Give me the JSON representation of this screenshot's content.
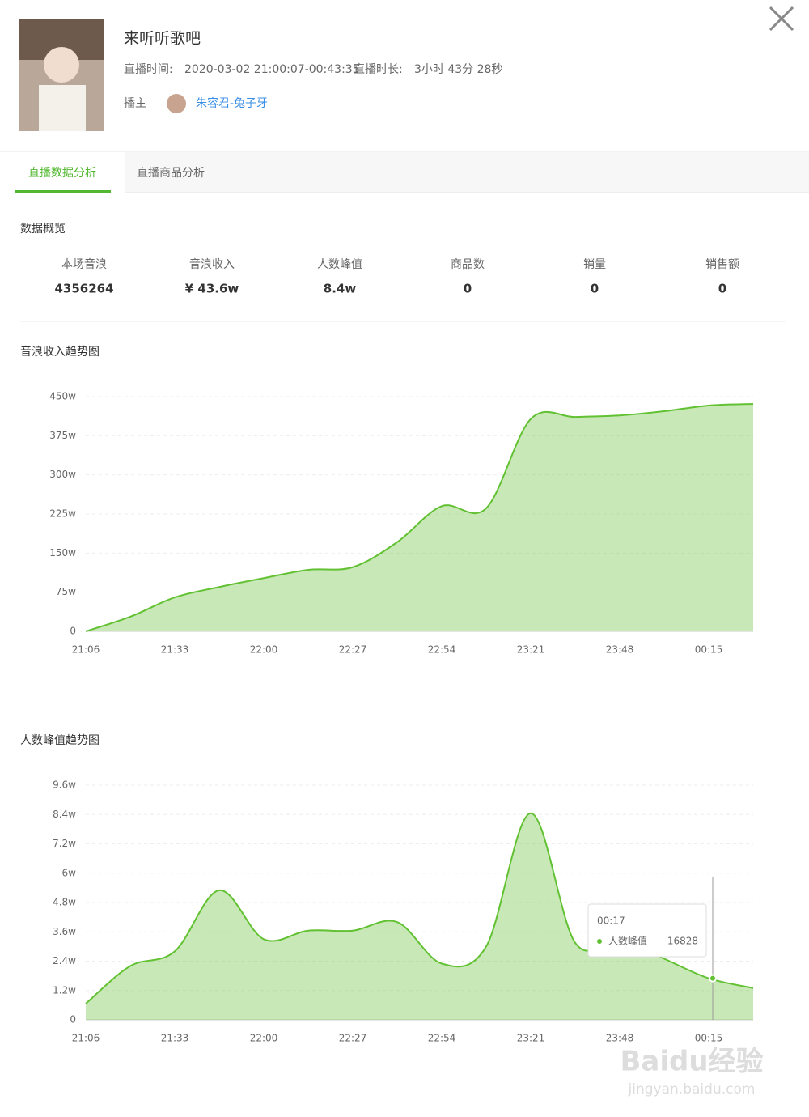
{
  "header": {
    "title": "来听听歌吧",
    "time_label": "直播时间:",
    "time_value": "2020-03-02 21:00:07-00:43:35",
    "duration_label": "直播时长:",
    "duration_value": "3小时 43分 28秒",
    "host_label": "播主",
    "host_name": "朱容君-兔子牙"
  },
  "tabs": [
    "直播数据分析",
    "直播商品分析"
  ],
  "overview": {
    "title": "数据概览",
    "stats": [
      {
        "label": "本场音浪",
        "value": 4356264
      },
      {
        "label": "音浪收入",
        "value": "¥ 43.6w"
      },
      {
        "label": "人数峰值",
        "value": "8.4w"
      },
      {
        "label": "商品数",
        "value": 0
      },
      {
        "label": "销量",
        "value": 0
      },
      {
        "label": "销售额",
        "value": 0
      }
    ]
  },
  "chart_data": [
    {
      "type": "area",
      "title": "音浪收入趋势图",
      "categories": [
        "21:06",
        null,
        "21:33",
        null,
        "22:00",
        null,
        "22:27",
        null,
        "22:54",
        null,
        "23:21",
        null,
        "23:48",
        null,
        "00:15",
        null
      ],
      "values": [
        0,
        28,
        65,
        85,
        102,
        118,
        123,
        171,
        240,
        236,
        407,
        411,
        414,
        422,
        433,
        436
      ],
      "color": "#62c132",
      "ylim": [
        0,
        450
      ],
      "yticks": [
        0,
        {
          "value": 75,
          "label": "75w"
        },
        {
          "value": 150,
          "label": "150w"
        },
        {
          "value": 225,
          "label": "225w"
        },
        {
          "value": 300,
          "label": "300w"
        },
        {
          "value": 375,
          "label": "375w"
        },
        {
          "value": 450,
          "label": "450w"
        }
      ],
      "grid": true
    },
    {
      "type": "area",
      "title": "人数峰值趋势图",
      "categories": [
        "21:06",
        null,
        "21:33",
        null,
        "22:00",
        null,
        "22:27",
        null,
        "22:54",
        null,
        "23:21",
        null,
        "23:48",
        null,
        "00:15",
        null
      ],
      "values": [
        0.66,
        2.2,
        2.8,
        5.3,
        3.3,
        3.65,
        3.65,
        4.0,
        2.3,
        3.0,
        8.45,
        3.15,
        3.3,
        2.5,
        1.7,
        1.3
      ],
      "color": "#62c132",
      "ylim": [
        0,
        9.6
      ],
      "yticks": [
        0,
        {
          "value": 1.2,
          "label": "1.2w"
        },
        {
          "value": 2.4,
          "label": "2.4w"
        },
        {
          "value": 3.6,
          "label": "3.6w"
        },
        {
          "value": 4.8,
          "label": "4.8w"
        },
        {
          "value": 6,
          "label": "6w"
        },
        {
          "value": 7.2,
          "label": "7.2w"
        },
        {
          "value": 8.4,
          "label": "8.4w"
        },
        {
          "value": 9.6,
          "label": "9.6w"
        }
      ],
      "grid": true,
      "tooltip": {
        "time": "00:17",
        "name": "人数峰值",
        "value": 16828
      }
    }
  ],
  "watermark": [
    "Baidu经验",
    "jingyan.baidu.com"
  ]
}
